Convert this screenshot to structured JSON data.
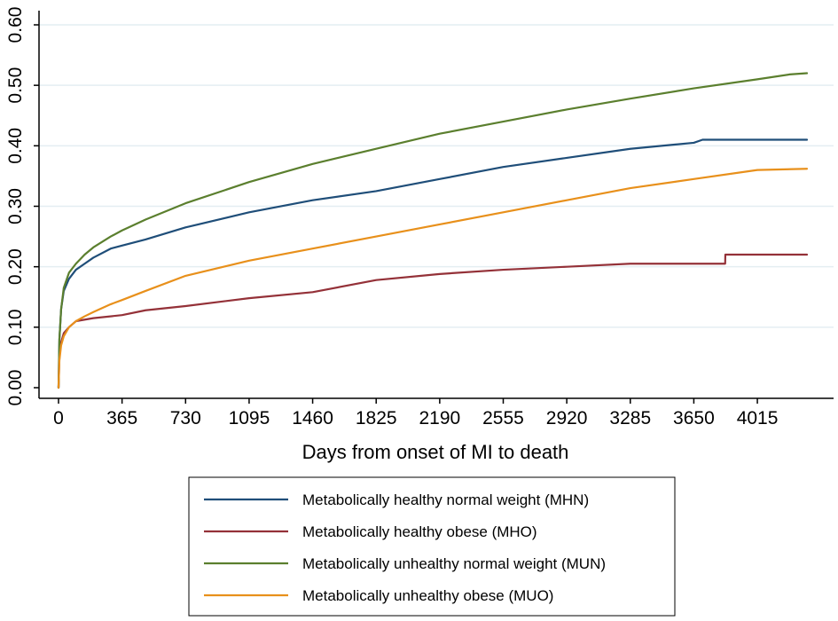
{
  "chart_data": {
    "type": "line",
    "title": "",
    "xlabel": "Days from onset of MI to death",
    "ylabel": "",
    "xlim": [
      0,
      4300
    ],
    "ylim": [
      0,
      0.6
    ],
    "xticks": [
      0,
      365,
      730,
      1095,
      1460,
      1825,
      2190,
      2555,
      2920,
      3285,
      3650,
      4015
    ],
    "xtick_labels": [
      "0",
      "365",
      "730",
      "1095",
      "1460",
      "1825",
      "2190",
      "2555",
      "2920",
      "3285",
      "3650",
      "4015"
    ],
    "yticks": [
      0,
      0.1,
      0.2,
      0.3,
      0.4,
      0.5,
      0.6
    ],
    "ytick_labels": [
      "0.00",
      "0.10",
      "0.20",
      "0.30",
      "0.40",
      "0.50",
      "0.60"
    ],
    "grid": "horizontal",
    "legend_position": "bottom",
    "series": [
      {
        "name": "Metabolically healthy normal weight (MHN)",
        "color": "#1f4e79",
        "x": [
          0,
          5,
          15,
          30,
          60,
          100,
          150,
          200,
          300,
          365,
          500,
          730,
          1095,
          1460,
          1825,
          2190,
          2555,
          2920,
          3285,
          3650,
          3700,
          4015,
          4300
        ],
        "y": [
          0,
          0.08,
          0.13,
          0.16,
          0.18,
          0.195,
          0.205,
          0.215,
          0.23,
          0.235,
          0.245,
          0.265,
          0.29,
          0.31,
          0.325,
          0.345,
          0.365,
          0.38,
          0.395,
          0.405,
          0.41,
          0.41,
          0.41
        ]
      },
      {
        "name": "Metabolically healthy obese (MHO)",
        "color": "#943138",
        "x": [
          0,
          5,
          15,
          30,
          60,
          100,
          200,
          365,
          500,
          730,
          1095,
          1460,
          1825,
          2190,
          2555,
          2920,
          3285,
          3650,
          3830,
          3831,
          4300
        ],
        "y": [
          0,
          0.05,
          0.075,
          0.09,
          0.1,
          0.11,
          0.115,
          0.12,
          0.128,
          0.135,
          0.148,
          0.158,
          0.178,
          0.188,
          0.195,
          0.2,
          0.205,
          0.205,
          0.205,
          0.22,
          0.22
        ]
      },
      {
        "name": "Metabolically unhealthy normal weight (MUN)",
        "color": "#5b7f2e",
        "x": [
          0,
          5,
          15,
          30,
          60,
          100,
          150,
          200,
          300,
          365,
          500,
          730,
          1095,
          1460,
          1825,
          2190,
          2555,
          2920,
          3285,
          3650,
          4015,
          4200,
          4300
        ],
        "y": [
          0,
          0.08,
          0.13,
          0.165,
          0.19,
          0.205,
          0.22,
          0.232,
          0.25,
          0.26,
          0.278,
          0.305,
          0.34,
          0.37,
          0.395,
          0.42,
          0.44,
          0.46,
          0.478,
          0.495,
          0.51,
          0.518,
          0.52
        ]
      },
      {
        "name": "Metabolically unhealthy obese (MUO)",
        "color": "#e8901b",
        "x": [
          0,
          5,
          15,
          30,
          60,
          100,
          150,
          200,
          300,
          365,
          500,
          730,
          1095,
          1460,
          1825,
          2190,
          2555,
          2920,
          3285,
          3650,
          4015,
          4300
        ],
        "y": [
          0,
          0.045,
          0.07,
          0.085,
          0.1,
          0.11,
          0.118,
          0.125,
          0.138,
          0.145,
          0.16,
          0.185,
          0.21,
          0.23,
          0.25,
          0.27,
          0.29,
          0.31,
          0.33,
          0.345,
          0.36,
          0.362
        ]
      }
    ]
  }
}
